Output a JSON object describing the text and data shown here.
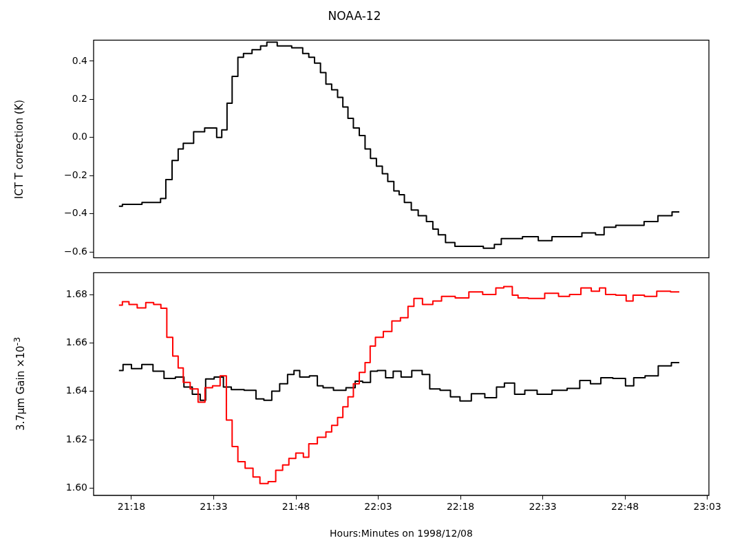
{
  "chart_data": [
    {
      "type": "step",
      "title": "NOAA-12",
      "ylabel": "ICT T correction (K)",
      "tick_labels": "y",
      "xlim": [
        21.185,
        23.055
      ],
      "ylim": [
        -0.63,
        0.51
      ],
      "yticks": [
        {
          "value": -0.6,
          "label": "−0.6"
        },
        {
          "value": -0.4,
          "label": "−0.4"
        },
        {
          "value": -0.2,
          "label": "−0.2"
        },
        {
          "value": 0,
          "label": "0.0"
        },
        0.2,
        0.4
      ],
      "series": [
        {
          "color": "#000000",
          "x": [
            21.262,
            21.283,
            21.381,
            21.396,
            21.413,
            21.434,
            21.45,
            21.465,
            21.513,
            21.532,
            21.553,
            21.565,
            21.584,
            21.597,
            21.615,
            21.632,
            21.649,
            21.684,
            21.701,
            21.722,
            21.764,
            21.81,
            21.831,
            21.847,
            21.866,
            21.883,
            21.899,
            21.918,
            21.935,
            21.95,
            21.966,
            21.983,
            22.002,
            22.018,
            22.035,
            22.054,
            22.071,
            22.087,
            22.108,
            22.119,
            22.14,
            22.161,
            22.182,
            22.211,
            22.221,
            22.244,
            22.265,
            22.301,
            22.349,
            22.39,
            22.416,
            22.432,
            22.461,
            22.516,
            22.557,
            22.599,
            22.641,
            22.697,
            22.724,
            22.749,
            22.795,
            22.837,
            22.879,
            22.921,
            22.965
          ],
          "values": [
            -0.36,
            -0.35,
            -0.34,
            -0.32,
            -0.22,
            -0.12,
            -0.06,
            -0.03,
            0.03,
            0.05,
            0.05,
            0.0,
            0.04,
            0.18,
            0.32,
            0.42,
            0.44,
            0.46,
            0.48,
            0.5,
            0.48,
            0.47,
            0.44,
            0.42,
            0.39,
            0.34,
            0.28,
            0.25,
            0.21,
            0.16,
            0.1,
            0.05,
            0.01,
            -0.06,
            -0.11,
            -0.15,
            -0.19,
            -0.23,
            -0.28,
            -0.3,
            -0.34,
            -0.38,
            -0.41,
            -0.44,
            -0.48,
            -0.51,
            -0.55,
            -0.57,
            -0.57,
            -0.58,
            -0.56,
            -0.53,
            -0.53,
            -0.52,
            -0.54,
            -0.52,
            -0.52,
            -0.5,
            -0.51,
            -0.47,
            -0.46,
            -0.46,
            -0.44,
            -0.41,
            -0.39
          ]
        }
      ]
    },
    {
      "type": "step",
      "xlabel": "Hours:Minutes on 1998/12/08",
      "ylabel": "3.7μm Gain ×10$^{-3}$",
      "xlim": [
        21.185,
        23.055
      ],
      "ylim": [
        1.597,
        1.689
      ],
      "xticks": [
        {
          "value": 21.3,
          "label": "21:18"
        },
        {
          "value": 21.55,
          "label": "21:33"
        },
        {
          "value": 21.8,
          "label": "21:48"
        },
        {
          "value": 22.05,
          "label": "22:03"
        },
        {
          "value": 22.3,
          "label": "22:18"
        },
        {
          "value": 22.55,
          "label": "22:33"
        },
        {
          "value": 22.8,
          "label": "22:48"
        },
        {
          "value": 23.05,
          "label": "23:03"
        }
      ],
      "yticks": [
        {
          "value": 1.6,
          "label": "1.60"
        },
        {
          "value": 1.62,
          "label": "1.62"
        },
        {
          "value": 1.64,
          "label": "1.64"
        },
        {
          "value": 1.66,
          "label": "1.66"
        },
        {
          "value": 1.68,
          "label": "1.68"
        }
      ],
      "series": [
        {
          "color": "#ff0000",
          "x": [
            21.262,
            21.283,
            21.302,
            21.333,
            21.354,
            21.381,
            21.398,
            21.417,
            21.434,
            21.45,
            21.465,
            21.492,
            21.513,
            21.534,
            21.559,
            21.58,
            21.597,
            21.615,
            21.632,
            21.659,
            21.68,
            21.701,
            21.73,
            21.747,
            21.772,
            21.785,
            21.814,
            21.831,
            21.847,
            21.883,
            21.899,
            21.918,
            21.935,
            21.95,
            21.966,
            21.983,
            22.002,
            22.018,
            22.033,
            22.05,
            22.081,
            22.102,
            22.133,
            22.148,
            22.169,
            22.2,
            22.232,
            22.253,
            22.315,
            22.336,
            22.399,
            22.416,
            22.447,
            22.468,
            22.482,
            22.53,
            22.582,
            22.614,
            22.649,
            22.683,
            22.712,
            22.733,
            22.749,
            22.795,
            22.812,
            22.837,
            22.881,
            22.912,
            22.965
          ],
          "values": [
            1.6756,
            1.677,
            1.6759,
            1.6745,
            1.6767,
            1.6759,
            1.6743,
            1.6623,
            1.6546,
            1.6497,
            1.6437,
            1.641,
            1.6355,
            1.6415,
            1.6423,
            1.6464,
            1.6281,
            1.6172,
            1.6109,
            1.6082,
            1.6046,
            1.6019,
            1.6027,
            1.6074,
            1.6096,
            1.6123,
            1.6145,
            1.6128,
            1.6183,
            1.621,
            1.6232,
            1.6259,
            1.6292,
            1.6336,
            1.6377,
            1.6431,
            1.6478,
            1.6519,
            1.6587,
            1.6623,
            1.6647,
            1.6691,
            1.6704,
            1.6751,
            1.6784,
            1.6759,
            1.6773,
            1.6792,
            1.6786,
            1.6811,
            1.68,
            1.6827,
            1.6833,
            1.6797,
            1.6786,
            1.6784,
            1.6805,
            1.6792,
            1.68,
            1.6827,
            1.6814,
            1.6827,
            1.68,
            1.6797,
            1.6773,
            1.6797,
            1.6792,
            1.6814,
            1.6811
          ]
        },
        {
          "color": "#000000",
          "x": [
            21.262,
            21.287,
            21.313,
            21.35,
            21.381,
            21.417,
            21.45,
            21.469,
            21.501,
            21.517,
            21.534,
            21.569,
            21.59,
            21.617,
            21.668,
            21.689,
            21.716,
            21.737,
            21.764,
            21.785,
            21.803,
            21.82,
            21.862,
            21.868,
            21.897,
            21.931,
            21.973,
            21.987,
            22.018,
            22.035,
            22.06,
            22.085,
            22.106,
            22.133,
            22.171,
            22.196,
            22.217,
            22.259,
            22.28,
            22.317,
            22.349,
            22.399,
            22.42,
            22.447,
            22.482,
            22.509,
            22.557,
            22.599,
            22.649,
            22.676,
            22.714,
            22.739,
            22.787,
            22.816,
            22.837,
            22.885,
            22.917,
            22.965
          ],
          "values": [
            1.6486,
            1.6511,
            1.6494,
            1.6511,
            1.6483,
            1.6453,
            1.6459,
            1.6418,
            1.6388,
            1.6363,
            1.6451,
            1.6459,
            1.6418,
            1.6407,
            1.6404,
            1.6369,
            1.6363,
            1.6401,
            1.6431,
            1.647,
            1.6486,
            1.6459,
            1.6464,
            1.6423,
            1.6415,
            1.6404,
            1.6415,
            1.6442,
            1.6437,
            1.6483,
            1.6486,
            1.6456,
            1.6483,
            1.6459,
            1.6486,
            1.647,
            1.641,
            1.6404,
            1.6377,
            1.636,
            1.639,
            1.6374,
            1.6418,
            1.6434,
            1.6388,
            1.6404,
            1.6388,
            1.6404,
            1.6412,
            1.6445,
            1.6431,
            1.6456,
            1.6453,
            1.6423,
            1.6456,
            1.6464,
            1.6505,
            1.6519
          ]
        }
      ]
    }
  ]
}
